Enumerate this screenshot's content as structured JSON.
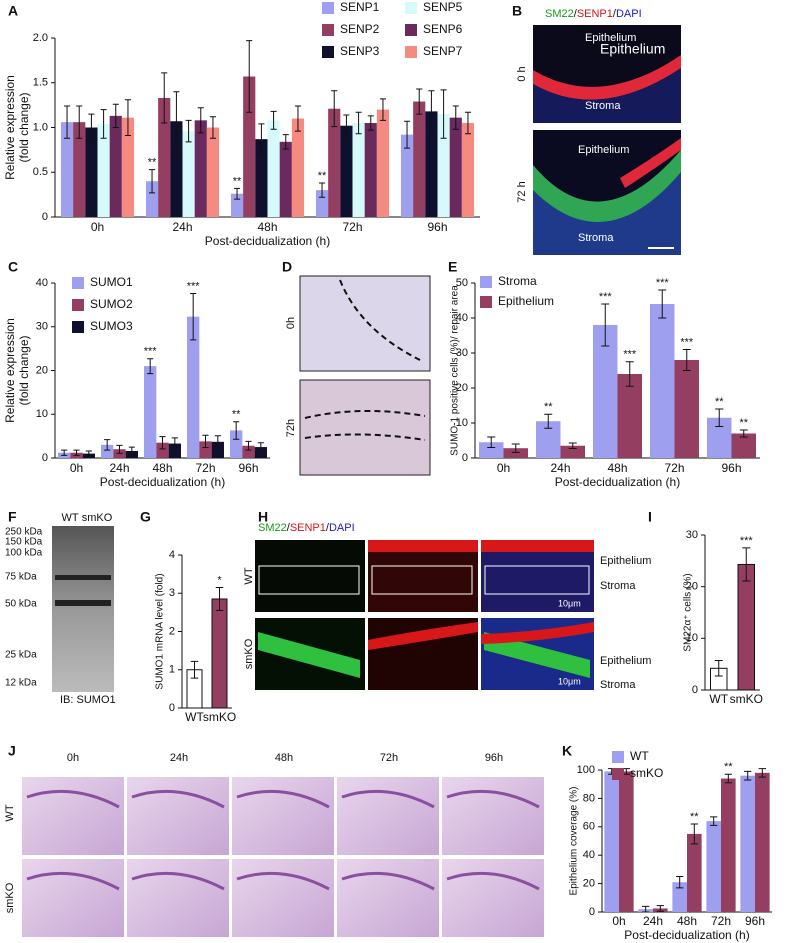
{
  "chart_data": [
    {
      "type": "bar",
      "panel": "A",
      "xlabel": "Post-decidualization (h)",
      "ylabel": [
        "Relative expression",
        "(fold change)"
      ],
      "categories": [
        "0h",
        "24h",
        "48h",
        "72h",
        "96h"
      ],
      "ylim": [
        0,
        2
      ],
      "yticks": [
        0,
        0.5,
        {
          "value": 1,
          "label": "1.0"
        },
        1.5,
        {
          "value": 2,
          "label": "2.0"
        }
      ],
      "series": [
        {
          "name": "SENP1",
          "color": "#9f9ff0",
          "values": [
            1.06,
            0.4,
            0.26,
            0.3,
            0.92
          ],
          "errors": [
            0.18,
            0.13,
            0.06,
            0.08,
            0.15
          ],
          "stars": [
            null,
            "**",
            "**",
            "**",
            null
          ]
        },
        {
          "name": "SENP2",
          "color": "#943f62",
          "values": [
            1.06,
            1.33,
            1.57,
            1.21,
            1.29
          ],
          "errors": [
            0.18,
            0.28,
            0.4,
            0.2,
            0.14
          ],
          "stars": [
            null,
            null,
            null,
            null,
            null
          ]
        },
        {
          "name": "SENP3",
          "color": "#0f0f2e",
          "values": [
            1.0,
            1.07,
            0.87,
            1.02,
            1.18
          ],
          "errors": [
            0.15,
            0.33,
            0.17,
            0.12,
            0.23
          ],
          "stars": [
            null,
            null,
            null,
            null,
            null
          ]
        },
        {
          "name": "SENP5",
          "color": "#d6fafa",
          "values": [
            1.04,
            0.96,
            1.08,
            1.05,
            1.15
          ],
          "errors": [
            0.16,
            0.12,
            0.1,
            0.12,
            0.27
          ],
          "stars": [
            null,
            null,
            null,
            null,
            null
          ]
        },
        {
          "name": "SENP6",
          "color": "#6b2a5e",
          "values": [
            1.13,
            1.08,
            0.84,
            1.05,
            1.11
          ],
          "errors": [
            0.13,
            0.14,
            0.08,
            0.08,
            0.13
          ],
          "stars": [
            null,
            null,
            null,
            null,
            null
          ]
        },
        {
          "name": "SENP7",
          "color": "#f48a80",
          "values": [
            1.11,
            1.0,
            1.1,
            1.2,
            1.05
          ],
          "errors": [
            0.2,
            0.12,
            0.14,
            0.12,
            0.12
          ],
          "stars": [
            null,
            null,
            null,
            null,
            null
          ]
        }
      ]
    },
    {
      "type": "bar",
      "panel": "C",
      "xlabel": "Post-decidualization (h)",
      "ylabel": [
        "Relative expression",
        "(fold change)"
      ],
      "categories": [
        "0h",
        "24h",
        "48h",
        "72h",
        "96h"
      ],
      "ylim": [
        0,
        40
      ],
      "yticks": [
        0,
        10,
        20,
        30,
        40
      ],
      "series": [
        {
          "name": "SUMO1",
          "color": "#9f9ff0",
          "values": [
            1.2,
            3.0,
            21,
            32.3,
            6.3
          ],
          "errors": [
            0.6,
            1.2,
            1.7,
            5.3,
            2.0
          ],
          "stars": [
            null,
            null,
            "***",
            "***",
            "**"
          ]
        },
        {
          "name": "SUMO2",
          "color": "#943f62",
          "values": [
            1.2,
            2.0,
            3.5,
            3.8,
            2.8
          ],
          "errors": [
            0.6,
            0.9,
            1.4,
            1.4,
            1.0
          ],
          "stars": [
            null,
            null,
            null,
            null,
            null
          ]
        },
        {
          "name": "SUMO3",
          "color": "#0f0f2e",
          "values": [
            1.0,
            1.6,
            3.3,
            3.7,
            2.5
          ],
          "errors": [
            0.6,
            0.9,
            1.3,
            1.4,
            1.0
          ],
          "stars": [
            null,
            null,
            null,
            null,
            null
          ]
        }
      ]
    },
    {
      "type": "bar",
      "panel": "E",
      "xlabel": "Post-decidualization (h)",
      "ylabel": [
        "SUMO-1 positive cells (%)/ repair area"
      ],
      "categories": [
        "0h",
        "24h",
        "48h",
        "72h",
        "96h"
      ],
      "ylim": [
        0,
        50
      ],
      "yticks": [
        0,
        10,
        20,
        30,
        40,
        50
      ],
      "series": [
        {
          "name": "Stroma",
          "color": "#9f9ff0",
          "values": [
            4.5,
            10.5,
            38,
            44,
            11.5
          ],
          "errors": [
            1.5,
            2.0,
            6.0,
            4.0,
            2.5
          ],
          "stars": [
            null,
            "**",
            "***",
            "***",
            "**"
          ]
        },
        {
          "name": "Epithelium",
          "color": "#943f62",
          "values": [
            2.8,
            3.5,
            24,
            28,
            7
          ],
          "errors": [
            1.2,
            0.8,
            3.5,
            3.0,
            1.0
          ],
          "stars": [
            null,
            null,
            "***",
            "***",
            "**"
          ]
        }
      ]
    },
    {
      "type": "bar",
      "panel": "G",
      "ylabel": [
        "SUMO1 mRNA level (fold)"
      ],
      "categories": [
        "WT",
        "smKO"
      ],
      "values": [
        1.0,
        2.85
      ],
      "errors": [
        0.22,
        0.3
      ],
      "colors": [
        "#ffffff",
        "#943f62"
      ],
      "stars": [
        null,
        "*"
      ],
      "ylim": [
        0,
        4
      ],
      "yticks": [
        0,
        1,
        2,
        3,
        4
      ]
    },
    {
      "type": "bar",
      "panel": "I",
      "ylabel": [
        "SM22α⁺ cells (%)"
      ],
      "categories": [
        "WT",
        "smKO"
      ],
      "values": [
        4.2,
        24.3
      ],
      "errors": [
        1.5,
        3.2
      ],
      "colors": [
        "#ffffff",
        "#943f62"
      ],
      "stars": [
        null,
        "***"
      ],
      "ylim": [
        0,
        30
      ],
      "yticks": [
        0,
        10,
        20,
        30
      ]
    },
    {
      "type": "bar",
      "panel": "K",
      "xlabel": "Post-decidualization (h)",
      "ylabel": [
        "Epithelium coverage (%)"
      ],
      "categories": [
        "0h",
        "24h",
        "48h",
        "72h",
        "96h"
      ],
      "ylim": [
        0,
        100
      ],
      "yticks": [
        0,
        20,
        40,
        60,
        80,
        100
      ],
      "series": [
        {
          "name": "WT",
          "color": "#9f9ff0",
          "values": [
            99,
            2,
            21,
            64,
            96
          ],
          "errors": [
            2,
            2,
            4,
            3,
            3
          ],
          "stars": [
            null,
            null,
            null,
            null,
            null
          ]
        },
        {
          "name": "smKO",
          "color": "#943f62",
          "values": [
            99,
            2.5,
            55,
            94,
            98
          ],
          "errors": [
            2,
            2,
            7,
            3,
            3
          ],
          "stars": [
            null,
            null,
            "**",
            "**",
            null
          ]
        }
      ]
    }
  ],
  "images": {
    "B": {
      "panel": "B",
      "stain": [
        "SM22",
        "/",
        "SENP1",
        "/",
        "DAPI"
      ],
      "rows": [
        "0 h",
        "72 h"
      ],
      "top_labels": [
        "Epithelium",
        "Epithelium",
        "Stroma"
      ],
      "bottom_labels": [
        "Epithelium",
        "Stroma"
      ]
    },
    "D": {
      "panel": "D",
      "rows": [
        "0h",
        "72h"
      ]
    },
    "F": {
      "panel": "F",
      "lanes": [
        "WT",
        "smKO"
      ],
      "markers": [
        "250 kDa",
        "150 kDa",
        "100 kDa",
        "75 kDa",
        "50 kDa",
        "25 kDa",
        "12 kDa"
      ],
      "caption": "IB: SUMO1"
    },
    "H": {
      "panel": "H",
      "stain": [
        "SM22",
        "/",
        "SENP1",
        "/",
        "DAPI"
      ],
      "rows": [
        "WT",
        "smKO"
      ],
      "regions": [
        "Epithelium",
        "Stroma",
        "Epithelium",
        "Stroma"
      ],
      "scale": [
        "10μm",
        "10μm"
      ]
    },
    "J": {
      "panel": "J",
      "columns": [
        "0h",
        "24h",
        "48h",
        "72h",
        "96h"
      ],
      "rows": [
        "WT",
        "smKO"
      ]
    }
  }
}
